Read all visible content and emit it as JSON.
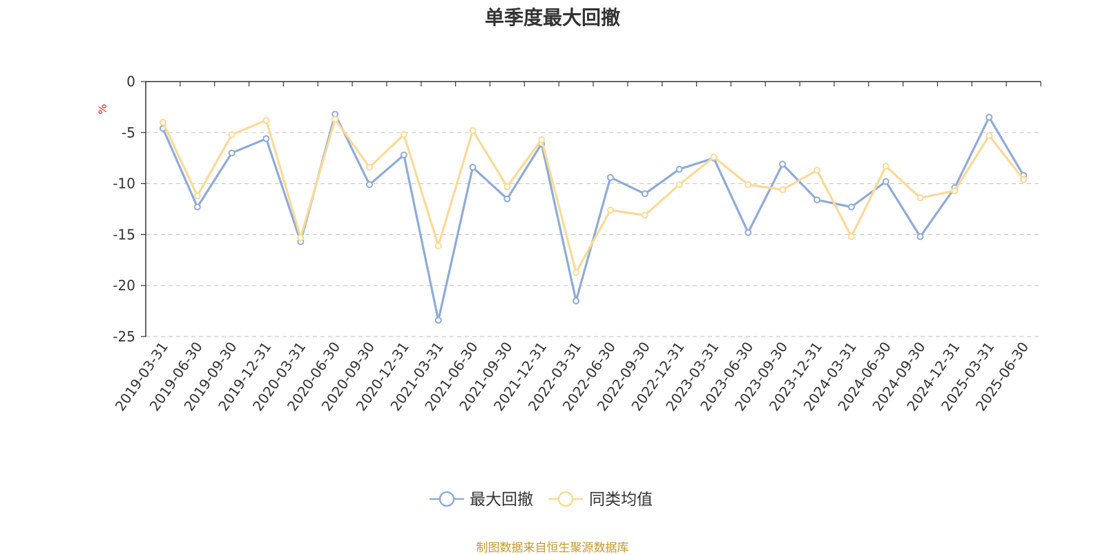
{
  "chart_data": {
    "type": "line",
    "title": "单季度最大回撤",
    "ylabel": "%",
    "ylim": [
      -25,
      0
    ],
    "yticks": [
      0,
      -5,
      -10,
      -15,
      -20,
      -25
    ],
    "grid": true,
    "legend_position": "bottom-center",
    "categories": [
      "2019-03-31",
      "2019-06-30",
      "2019-09-30",
      "2019-12-31",
      "2020-03-31",
      "2020-06-30",
      "2020-09-30",
      "2020-12-31",
      "2021-03-31",
      "2021-06-30",
      "2021-09-30",
      "2021-12-31",
      "2022-03-31",
      "2022-06-30",
      "2022-09-30",
      "2022-12-31",
      "2023-03-31",
      "2023-06-30",
      "2023-09-30",
      "2023-12-31",
      "2024-03-31",
      "2024-06-30",
      "2024-09-30",
      "2024-12-31",
      "2025-03-31",
      "2025-06-30"
    ],
    "series": [
      {
        "name": "最大回撤",
        "color": "#8eabd8",
        "values": [
          -4.6,
          -12.3,
          -7.0,
          -5.6,
          -15.7,
          -3.2,
          -10.1,
          -7.2,
          -23.4,
          -8.4,
          -11.5,
          -6.1,
          -21.5,
          -9.4,
          -11.0,
          -8.6,
          -7.5,
          -14.8,
          -8.1,
          -11.6,
          -12.3,
          -9.8,
          -15.2,
          -10.4,
          -3.5,
          -9.2
        ]
      },
      {
        "name": "同类均值",
        "color": "#fcd996",
        "values": [
          -4.0,
          -11.2,
          -5.2,
          -3.8,
          -15.3,
          -3.7,
          -8.4,
          -5.2,
          -16.1,
          -4.8,
          -10.3,
          -5.7,
          -18.7,
          -12.6,
          -13.1,
          -10.1,
          -7.4,
          -10.1,
          -10.6,
          -8.7,
          -15.2,
          -8.3,
          -11.4,
          -10.7,
          -5.3,
          -9.6
        ]
      }
    ]
  },
  "footer": {
    "source": "制图数据来自恒生聚源数据库"
  }
}
